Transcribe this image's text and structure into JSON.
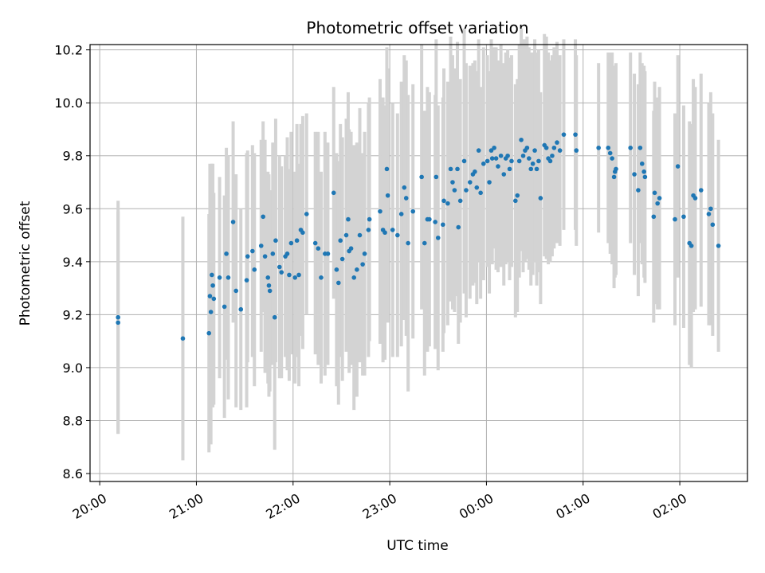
{
  "chart_data": {
    "type": "scatter",
    "title": "Photometric offset variation",
    "xlabel": "UTC time",
    "ylabel": "Photometric offset",
    "grid": true,
    "colors": {
      "points": "#1f77b4",
      "errorbars": "#d3d3d3",
      "grid": "#b0b0b0",
      "axes": "#000000"
    },
    "x_unit": "hours since 20:00 UTC",
    "xlim": [
      19.9,
      26.7
    ],
    "ylim": [
      8.57,
      10.22
    ],
    "x_ticks": [
      {
        "value": 20,
        "label": "20:00"
      },
      {
        "value": 21,
        "label": "21:00"
      },
      {
        "value": 22,
        "label": "22:00"
      },
      {
        "value": 23,
        "label": "23:00"
      },
      {
        "value": 24,
        "label": "00:00"
      },
      {
        "value": 25,
        "label": "01:00"
      },
      {
        "value": 26,
        "label": "02:00"
      }
    ],
    "y_ticks": [
      {
        "value": 8.6,
        "label": "8.6"
      },
      {
        "value": 8.8,
        "label": "8.8"
      },
      {
        "value": 9.0,
        "label": "9.0"
      },
      {
        "value": 9.2,
        "label": "9.2"
      },
      {
        "value": 9.4,
        "label": "9.4"
      },
      {
        "value": 9.6,
        "label": "9.6"
      },
      {
        "value": 9.8,
        "label": "9.8"
      },
      {
        "value": 10.0,
        "label": "10.0"
      },
      {
        "value": 10.2,
        "label": "10.2"
      }
    ],
    "points": [
      [
        20.19,
        9.19,
        0.44
      ],
      [
        20.19,
        9.17,
        0.42
      ],
      [
        20.86,
        9.11,
        0.46
      ],
      [
        21.13,
        9.13,
        0.45
      ],
      [
        21.14,
        9.27,
        0.5
      ],
      [
        21.15,
        9.21,
        0.5
      ],
      [
        21.16,
        9.35,
        0.42
      ],
      [
        21.17,
        9.31,
        0.46
      ],
      [
        21.18,
        9.26,
        0.4
      ],
      [
        21.24,
        9.34,
        0.38
      ],
      [
        21.29,
        9.23,
        0.42
      ],
      [
        21.31,
        9.43,
        0.4
      ],
      [
        21.33,
        9.34,
        0.46
      ],
      [
        21.38,
        9.55,
        0.38
      ],
      [
        21.41,
        9.29,
        0.44
      ],
      [
        21.46,
        9.22,
        0.38
      ],
      [
        21.52,
        9.33,
        0.48
      ],
      [
        21.53,
        9.42,
        0.4
      ],
      [
        21.58,
        9.44,
        0.4
      ],
      [
        21.6,
        9.37,
        0.44
      ],
      [
        21.67,
        9.46,
        0.4
      ],
      [
        21.69,
        9.57,
        0.36
      ],
      [
        21.71,
        9.42,
        0.44
      ],
      [
        21.74,
        9.34,
        0.4
      ],
      [
        21.75,
        9.31,
        0.42
      ],
      [
        21.76,
        9.29,
        0.38
      ],
      [
        21.79,
        9.43,
        0.42
      ],
      [
        21.81,
        9.19,
        0.5
      ],
      [
        21.82,
        9.48,
        0.46
      ],
      [
        21.86,
        9.38,
        0.42
      ],
      [
        21.88,
        9.36,
        0.4
      ],
      [
        21.92,
        9.42,
        0.38
      ],
      [
        21.94,
        9.43,
        0.44
      ],
      [
        21.96,
        9.35,
        0.4
      ],
      [
        21.98,
        9.47,
        0.42
      ],
      [
        22.02,
        9.34,
        0.4
      ],
      [
        22.04,
        9.48,
        0.44
      ],
      [
        22.06,
        9.35,
        0.42
      ],
      [
        22.08,
        9.52,
        0.4
      ],
      [
        22.1,
        9.51,
        0.44
      ],
      [
        22.14,
        9.58,
        0.38
      ],
      [
        22.23,
        9.47,
        0.42
      ],
      [
        22.26,
        9.45,
        0.44
      ],
      [
        22.29,
        9.34,
        0.4
      ],
      [
        22.33,
        9.43,
        0.46
      ],
      [
        22.36,
        9.43,
        0.42
      ],
      [
        22.42,
        9.66,
        0.4
      ],
      [
        22.45,
        9.37,
        0.44
      ],
      [
        22.47,
        9.32,
        0.46
      ],
      [
        22.49,
        9.48,
        0.44
      ],
      [
        22.51,
        9.41,
        0.46
      ],
      [
        22.55,
        9.5,
        0.44
      ],
      [
        22.57,
        9.56,
        0.48
      ],
      [
        22.58,
        9.44,
        0.46
      ],
      [
        22.6,
        9.45,
        0.44
      ],
      [
        22.63,
        9.34,
        0.5
      ],
      [
        22.66,
        9.37,
        0.48
      ],
      [
        22.69,
        9.5,
        0.48
      ],
      [
        22.72,
        9.39,
        0.42
      ],
      [
        22.74,
        9.43,
        0.46
      ],
      [
        22.78,
        9.52,
        0.48
      ],
      [
        22.79,
        9.56,
        0.46
      ],
      [
        22.9,
        9.59,
        0.5
      ],
      [
        22.93,
        9.52,
        0.5
      ],
      [
        22.95,
        9.51,
        0.48
      ],
      [
        22.97,
        9.75,
        0.46
      ],
      [
        22.98,
        9.65,
        0.48
      ],
      [
        23.03,
        9.52,
        0.48
      ],
      [
        23.08,
        9.5,
        0.46
      ],
      [
        23.12,
        9.58,
        0.5
      ],
      [
        23.15,
        9.68,
        0.5
      ],
      [
        23.17,
        9.64,
        0.52
      ],
      [
        23.19,
        9.47,
        0.56
      ],
      [
        23.24,
        9.59,
        0.48
      ],
      [
        23.33,
        9.72,
        0.5
      ],
      [
        23.36,
        9.47,
        0.5
      ],
      [
        23.39,
        9.56,
        0.5
      ],
      [
        23.41,
        9.56,
        0.48
      ],
      [
        23.47,
        9.55,
        0.48
      ],
      [
        23.48,
        9.72,
        0.52
      ],
      [
        23.5,
        9.49,
        0.5
      ],
      [
        23.55,
        9.54,
        0.48
      ],
      [
        23.56,
        9.63,
        0.5
      ],
      [
        23.6,
        9.62,
        0.46
      ],
      [
        23.63,
        9.75,
        0.5
      ],
      [
        23.65,
        9.7,
        0.48
      ],
      [
        23.67,
        9.67,
        0.46
      ],
      [
        23.7,
        9.75,
        0.48
      ],
      [
        23.71,
        9.53,
        0.44
      ],
      [
        23.73,
        9.63,
        0.46
      ],
      [
        23.77,
        9.78,
        0.5
      ],
      [
        23.79,
        9.67,
        0.48
      ],
      [
        23.83,
        9.7,
        0.44
      ],
      [
        23.86,
        9.73,
        0.42
      ],
      [
        23.88,
        9.74,
        0.42
      ],
      [
        23.9,
        9.68,
        0.44
      ],
      [
        23.92,
        9.82,
        0.42
      ],
      [
        23.94,
        9.66,
        0.4
      ],
      [
        23.97,
        9.77,
        0.44
      ],
      [
        24.01,
        9.78,
        0.4
      ],
      [
        24.03,
        9.7,
        0.42
      ],
      [
        24.05,
        9.82,
        0.42
      ],
      [
        24.06,
        9.79,
        0.4
      ],
      [
        24.08,
        9.83,
        0.38
      ],
      [
        24.1,
        9.79,
        0.42
      ],
      [
        24.12,
        9.76,
        0.4
      ],
      [
        24.15,
        9.8,
        0.42
      ],
      [
        24.18,
        9.73,
        0.42
      ],
      [
        24.2,
        9.79,
        0.4
      ],
      [
        24.22,
        9.8,
        0.4
      ],
      [
        24.24,
        9.75,
        0.42
      ],
      [
        24.26,
        9.78,
        0.4
      ],
      [
        24.3,
        9.63,
        0.44
      ],
      [
        24.32,
        9.65,
        0.44
      ],
      [
        24.34,
        9.78,
        0.44
      ],
      [
        24.36,
        9.86,
        0.42
      ],
      [
        24.38,
        9.8,
        0.44
      ],
      [
        24.4,
        9.82,
        0.42
      ],
      [
        24.42,
        9.83,
        0.42
      ],
      [
        24.44,
        9.79,
        0.42
      ],
      [
        24.46,
        9.75,
        0.44
      ],
      [
        24.48,
        9.77,
        0.42
      ],
      [
        24.5,
        9.82,
        0.42
      ],
      [
        24.52,
        9.75,
        0.44
      ],
      [
        24.54,
        9.78,
        0.42
      ],
      [
        24.56,
        9.64,
        0.4
      ],
      [
        24.6,
        9.84,
        0.42
      ],
      [
        24.62,
        9.83,
        0.42
      ],
      [
        24.64,
        9.79,
        0.4
      ],
      [
        24.66,
        9.78,
        0.38
      ],
      [
        24.68,
        9.8,
        0.38
      ],
      [
        24.7,
        9.83,
        0.38
      ],
      [
        24.73,
        9.85,
        0.38
      ],
      [
        24.76,
        9.82,
        0.36
      ],
      [
        24.8,
        9.88,
        0.36
      ],
      [
        24.92,
        9.88,
        0.36
      ],
      [
        24.93,
        9.82,
        0.36
      ],
      [
        25.16,
        9.83,
        0.32
      ],
      [
        25.26,
        9.83,
        0.36
      ],
      [
        25.28,
        9.81,
        0.38
      ],
      [
        25.3,
        9.79,
        0.4
      ],
      [
        25.32,
        9.72,
        0.42
      ],
      [
        25.33,
        9.74,
        0.4
      ],
      [
        25.34,
        9.75,
        0.4
      ],
      [
        25.49,
        9.83,
        0.36
      ],
      [
        25.53,
        9.73,
        0.38
      ],
      [
        25.57,
        9.67,
        0.4
      ],
      [
        25.59,
        9.83,
        0.36
      ],
      [
        25.61,
        9.77,
        0.38
      ],
      [
        25.63,
        9.74,
        0.4
      ],
      [
        25.64,
        9.72,
        0.4
      ],
      [
        25.73,
        9.57,
        0.4
      ],
      [
        25.74,
        9.66,
        0.42
      ],
      [
        25.77,
        9.62,
        0.4
      ],
      [
        25.79,
        9.64,
        0.42
      ],
      [
        25.95,
        9.56,
        0.4
      ],
      [
        25.98,
        9.76,
        0.42
      ],
      [
        26.04,
        9.57,
        0.42
      ],
      [
        26.1,
        9.47,
        0.46
      ],
      [
        26.12,
        9.46,
        0.46
      ],
      [
        26.14,
        9.65,
        0.44
      ],
      [
        26.16,
        9.64,
        0.42
      ],
      [
        26.22,
        9.67,
        0.44
      ],
      [
        26.3,
        9.58,
        0.42
      ],
      [
        26.32,
        9.6,
        0.44
      ],
      [
        26.34,
        9.54,
        0.42
      ],
      [
        26.4,
        9.46,
        0.4
      ]
    ]
  }
}
